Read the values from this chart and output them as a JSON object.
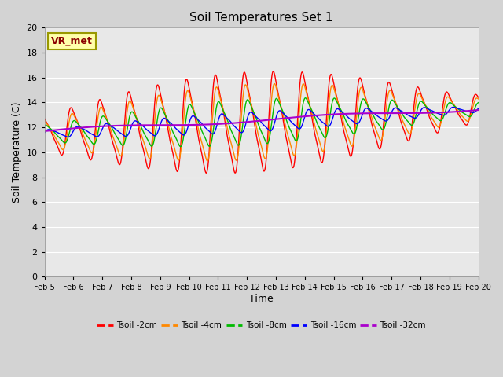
{
  "title": "Soil Temperatures Set 1",
  "xlabel": "Time",
  "ylabel": "Soil Temperature (C)",
  "xlim": [
    0,
    15
  ],
  "ylim": [
    0,
    20
  ],
  "yticks": [
    0,
    2,
    4,
    6,
    8,
    10,
    12,
    14,
    16,
    18,
    20
  ],
  "xtick_labels": [
    "Feb 5",
    "Feb 6",
    "Feb 7",
    "Feb 8",
    "Feb 9",
    "Feb 10",
    "Feb 11",
    "Feb 12",
    "Feb 13",
    "Feb 14",
    "Feb 15",
    "Feb 16",
    "Feb 17",
    "Feb 18",
    "Feb 19",
    "Feb 20"
  ],
  "annotation": "VR_met",
  "colors": {
    "Tsoil -2cm": "#ff0000",
    "Tsoil -4cm": "#ff8800",
    "Tsoil -8cm": "#00bb00",
    "Tsoil -16cm": "#0000ff",
    "Tsoil -32cm": "#aa00cc"
  },
  "fig_bg": "#d3d3d3",
  "plot_bg": "#e8e8e8",
  "grid_color": "#ffffff"
}
